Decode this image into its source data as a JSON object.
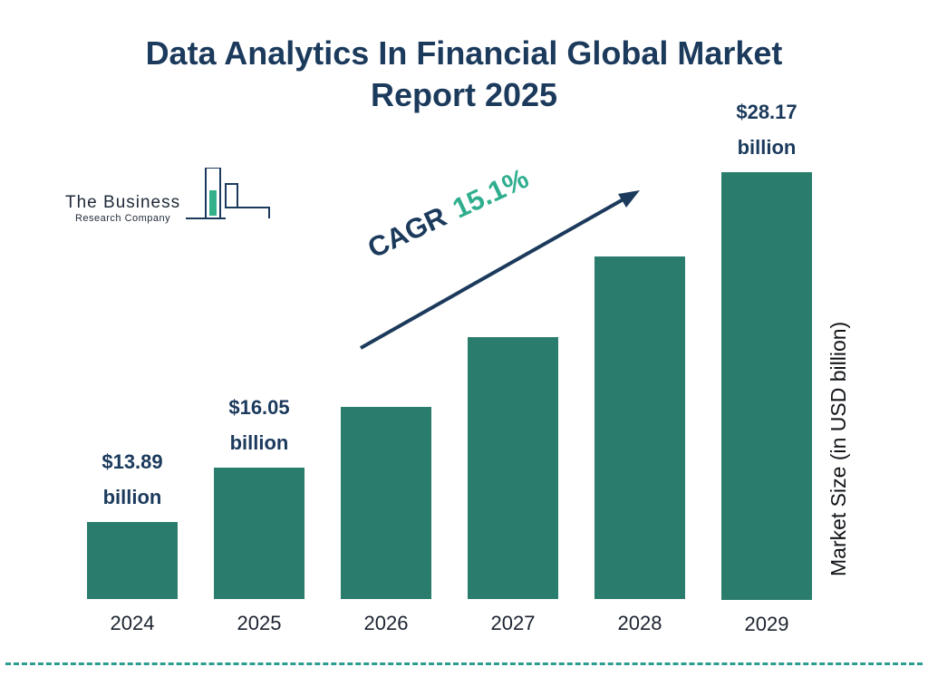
{
  "header": {
    "title_line1": "Data Analytics In Financial Global Market",
    "title_line2": "Report 2025"
  },
  "logo": {
    "line1": "The Business",
    "line2": "Research Company"
  },
  "annotation": {
    "cagr_label": "CAGR",
    "cagr_value": "15.1%"
  },
  "colors": {
    "bar": "#2a7d6d",
    "navy": "#1b3a5c",
    "teal_accent": "#2fae8e",
    "divider": "#2a9d8f"
  },
  "chart_data": {
    "type": "bar",
    "title": "Data Analytics In Financial Global Market Report 2025",
    "categories": [
      "2024",
      "2025",
      "2026",
      "2027",
      "2028",
      "2029"
    ],
    "values": [
      13.89,
      16.05,
      18.47,
      21.27,
      24.48,
      28.17
    ],
    "value_labels": [
      {
        "amount": "$13.89",
        "unit": "billion"
      },
      {
        "amount": "$16.05",
        "unit": "billion"
      },
      null,
      null,
      null,
      {
        "amount": "$28.17",
        "unit": "billion"
      }
    ],
    "xlabel": "",
    "ylabel": "Market Size (in USD billion)",
    "cagr": "15.1%",
    "legend": "none",
    "grid": false,
    "bar_color": "#2a7d6d"
  }
}
